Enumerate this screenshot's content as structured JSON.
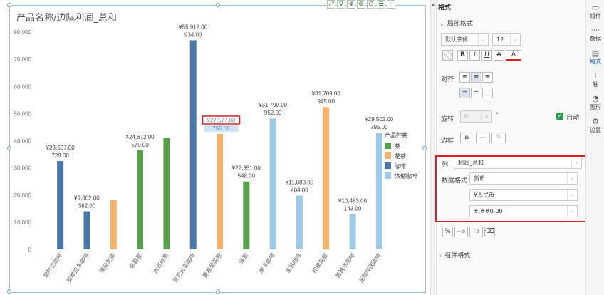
{
  "chart_data": {
    "type": "bar",
    "title": "产品名称/边际利润_总和",
    "ylim": [
      0,
      80000
    ],
    "yticks": [
      "0",
      "10,000",
      "20,000",
      "30,000",
      "40,000",
      "50,000",
      "60,000",
      "70,000",
      "80,000"
    ],
    "categories": [
      "爱尔兰咖啡",
      "安摩拉多咖啡",
      "薄荷花茶",
      "伯爵茶",
      "大吉岭茶",
      "哥伦比亚咖啡",
      "黄春菊花茶",
      "绿茶",
      "摩卡咖啡",
      "拿铁咖啡",
      "柠檬花茶",
      "普通浓咖啡",
      "无咖啡因咖啡"
    ],
    "values": [
      32500,
      14000,
      18200,
      36500,
      41000,
      77000,
      42500,
      25000,
      48200,
      19800,
      52400,
      13000,
      43000
    ],
    "series_of_bar": [
      "咖啡",
      "咖啡",
      "花茶",
      "茶",
      "茶",
      "咖啡",
      "花茶",
      "茶",
      "浓缩咖啡",
      "浓缩咖啡",
      "花茶",
      "浓缩咖啡",
      "浓缩咖啡"
    ],
    "labels_top": [
      "¥23,507.00",
      "¥9,602.00",
      "",
      "¥24,672.00",
      "",
      "¥55,912.00",
      "¥27,577.00",
      "¥22,351.00",
      "¥31,790.00",
      "¥11,883.00",
      "¥31,709.00",
      "¥10,483.00",
      "¥29,502.00"
    ],
    "labels_bottom": [
      "728.00",
      "382.00",
      "",
      "570.00",
      "",
      "934.00",
      "755.00",
      "548.00",
      "952.00",
      "404.00",
      "945.00",
      "143.00",
      "795.00"
    ],
    "highlighted_index": 6,
    "legend": {
      "title": "产品种类",
      "position": "right",
      "items": [
        {
          "name": "茶",
          "color": "#56a04a"
        },
        {
          "name": "花茶",
          "color": "#f6b26b"
        },
        {
          "name": "咖啡",
          "color": "#4a76a8"
        },
        {
          "name": "浓缩咖啡",
          "color": "#9fcae6"
        }
      ]
    },
    "grid": false
  },
  "chart_toolbar": [
    "⤢",
    "∇",
    "↯",
    "⊕",
    "⊙",
    "☰",
    "⋮"
  ],
  "props": {
    "title": "格式",
    "local_format": "局部格式",
    "font_family": "默认字体",
    "font_size": "12",
    "bold": "B",
    "italic": "I",
    "underline": "U",
    "strike": "A",
    "font_color": "A",
    "align_label": "对齐",
    "rotate_label": "旋转",
    "rotate_value": "0",
    "degree": "°",
    "auto_label": "自动",
    "border_label": "边框",
    "column_label": "列",
    "column_value": "利润_总和",
    "data_format_label": "数据格式",
    "data_format_value": "货币",
    "currency_value": "¥人民币",
    "pattern_value": "#,##0.00",
    "percent_btn": "%",
    "inc_decimal_btn": "+.0",
    "dec_decimal_btn": "-.0",
    "component_format": "组件格式"
  },
  "nav": [
    {
      "label": "组件",
      "icon": "▭"
    },
    {
      "label": "数据",
      "icon": "〰"
    },
    {
      "label": "格式",
      "icon": "▤"
    },
    {
      "label": "轴",
      "icon": "⊥"
    },
    {
      "label": "图形",
      "icon": "◔"
    },
    {
      "label": "设置",
      "icon": "⚙"
    }
  ]
}
